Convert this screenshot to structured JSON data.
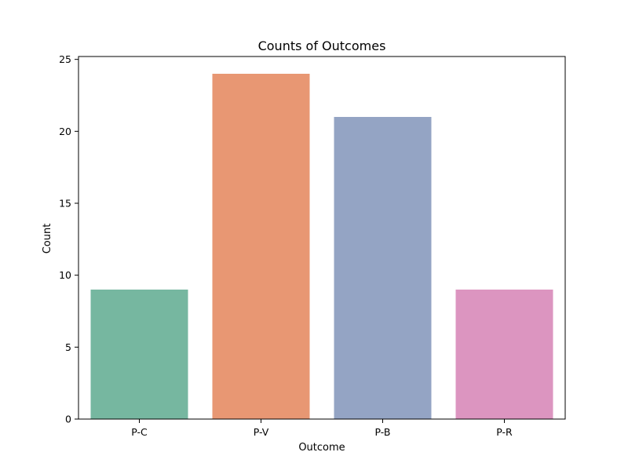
{
  "chart_data": {
    "type": "bar",
    "title": "Counts of Outcomes",
    "xlabel": "Outcome",
    "ylabel": "Count",
    "categories": [
      "P-C",
      "P-V",
      "P-B",
      "P-R"
    ],
    "values": [
      9,
      24,
      21,
      9
    ],
    "colors": [
      "#76b7a0",
      "#e89773",
      "#94a4c4",
      "#dc95c0"
    ],
    "ylim": [
      0,
      25.2
    ],
    "yticks": [
      0,
      5,
      10,
      15,
      20,
      25
    ],
    "grid": false,
    "legend": "none"
  }
}
